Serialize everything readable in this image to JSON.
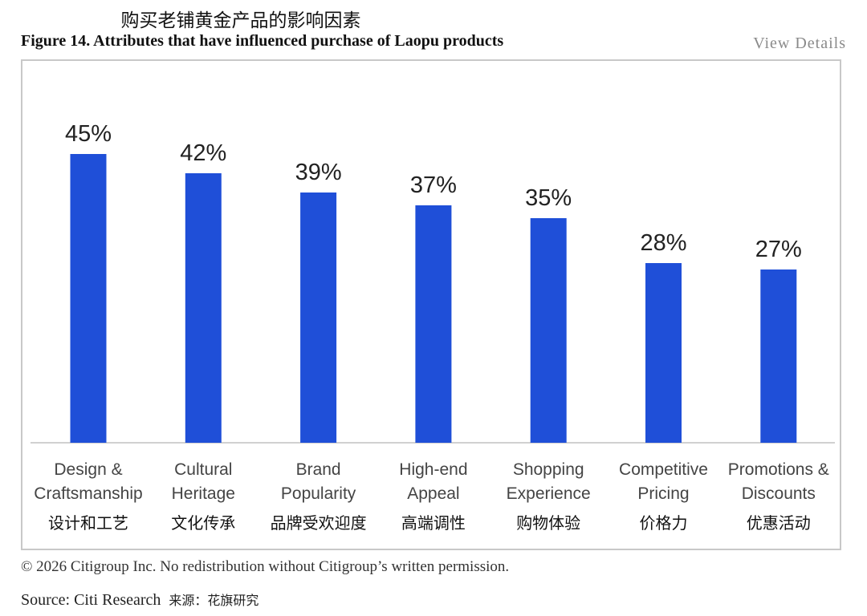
{
  "header": {
    "title_cn": "购买老铺黄金产品的影响因素",
    "title_en": "Figure 14. Attributes that have influenced purchase of Laopu products",
    "view_details": "View Details"
  },
  "chart_data": {
    "type": "bar",
    "title": "Figure 14. Attributes that have influenced purchase of Laopu products",
    "categories": [
      {
        "en": [
          "Design &",
          "Craftsmanship"
        ],
        "cn": "设计和工艺"
      },
      {
        "en": [
          "Cultural",
          "Heritage"
        ],
        "cn": "文化传承"
      },
      {
        "en": [
          "Brand",
          "Popularity"
        ],
        "cn": "品牌受欢迎度"
      },
      {
        "en": [
          "High-end",
          "Appeal"
        ],
        "cn": "高端调性"
      },
      {
        "en": [
          "Shopping",
          "Experience"
        ],
        "cn": "购物体验"
      },
      {
        "en": [
          "Competitive",
          "Pricing"
        ],
        "cn": "价格力"
      },
      {
        "en": [
          "Promotions &",
          "Discounts"
        ],
        "cn": "优惠活动"
      }
    ],
    "values": [
      45,
      42,
      39,
      37,
      35,
      28,
      27
    ],
    "value_labels": [
      "45%",
      "42%",
      "39%",
      "37%",
      "35%",
      "28%",
      "27%"
    ],
    "ylim": [
      0,
      50
    ],
    "bar_color": "#1f4fd8",
    "grid": false,
    "legend": "none"
  },
  "footer": {
    "copyright": "© 2026 Citigroup Inc. No redistribution without Citigroup’s written permission.",
    "source_en": "Source: Citi Research",
    "source_cn": "来源：花旗研究"
  }
}
